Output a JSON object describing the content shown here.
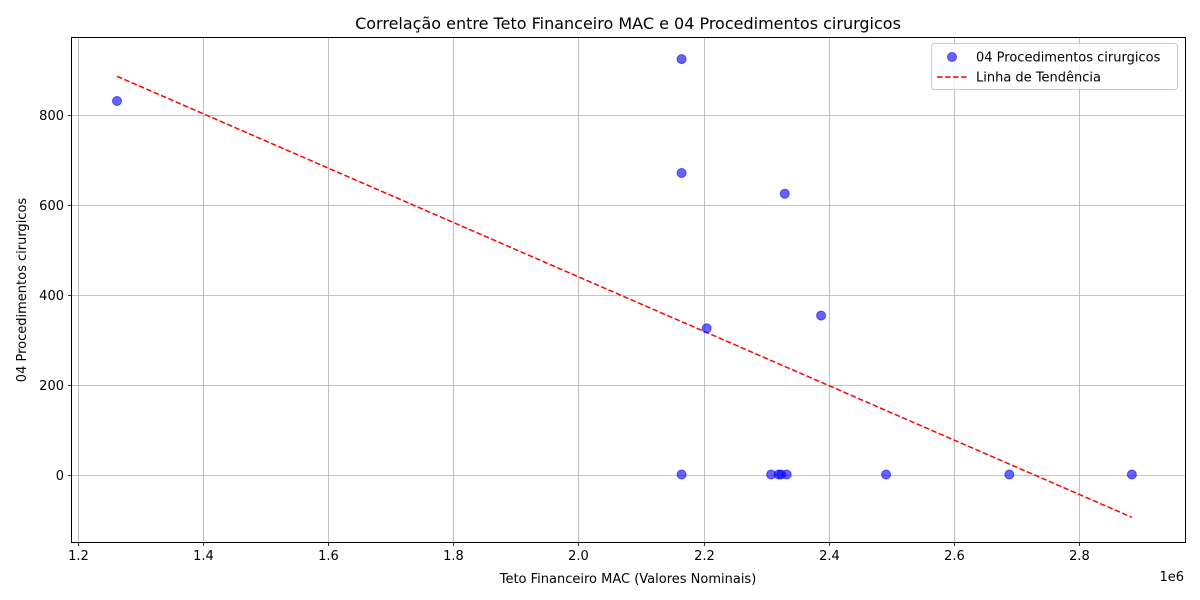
{
  "chart_data": {
    "type": "scatter",
    "title": "Correlação entre Teto Financeiro MAC e 04 Procedimentos cirurgicos",
    "xlabel": "Teto Financeiro MAC (Valores Nominais)",
    "ylabel": "04 Procedimentos cirurgicos",
    "x_offset_label": "1e6",
    "x_scale": 1000000,
    "xlim": [
      1190000,
      2970000
    ],
    "ylim": [
      -150,
      970
    ],
    "x_ticks": [
      1200000,
      1400000,
      1600000,
      1800000,
      2000000,
      2200000,
      2400000,
      2600000,
      2800000
    ],
    "x_tick_labels": [
      "1.2",
      "1.4",
      "1.6",
      "1.8",
      "2.0",
      "2.2",
      "2.4",
      "2.6",
      "2.8"
    ],
    "y_ticks": [
      0,
      200,
      400,
      600,
      800
    ],
    "y_tick_labels": [
      "0",
      "200",
      "400",
      "600",
      "800"
    ],
    "grid": true,
    "legend_position": "top-right",
    "series": [
      {
        "name": "04 Procedimentos cirurgicos",
        "kind": "scatter",
        "color": "#0000ff",
        "points": [
          {
            "x": 1262000,
            "y": 830
          },
          {
            "x": 2165000,
            "y": 923
          },
          {
            "x": 2165000,
            "y": 670
          },
          {
            "x": 2330000,
            "y": 624
          },
          {
            "x": 2205000,
            "y": 325
          },
          {
            "x": 2388000,
            "y": 353
          },
          {
            "x": 2165000,
            "y": 0
          },
          {
            "x": 2308000,
            "y": 0
          },
          {
            "x": 2320000,
            "y": 0
          },
          {
            "x": 2324000,
            "y": 0
          },
          {
            "x": 2333000,
            "y": 0
          },
          {
            "x": 2492000,
            "y": 0
          },
          {
            "x": 2689000,
            "y": 0
          },
          {
            "x": 2885000,
            "y": 0
          }
        ]
      },
      {
        "name": "Linha de Tendência",
        "kind": "line",
        "style": "dashed",
        "color": "#ff0000",
        "points": [
          {
            "x": 1262000,
            "y": 885
          },
          {
            "x": 2885000,
            "y": -95
          }
        ]
      }
    ]
  }
}
